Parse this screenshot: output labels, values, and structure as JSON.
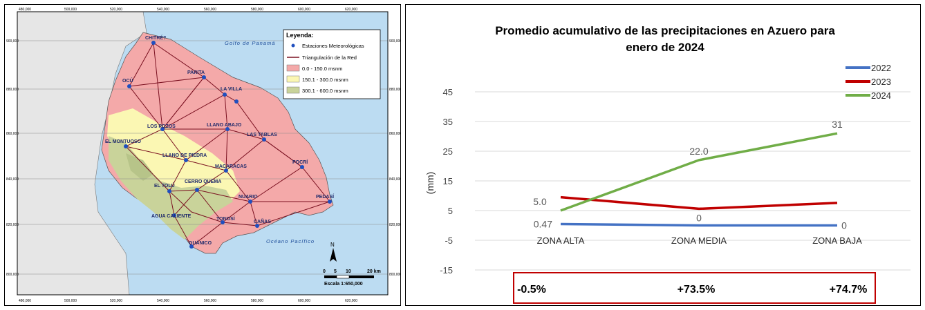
{
  "map": {
    "x_ticks": [
      "480,000",
      "500,000",
      "520,000",
      "540,000",
      "560,000",
      "580,000",
      "600,000",
      "620,000"
    ],
    "y_ticks": [
      "900,000",
      "880,000",
      "860,000",
      "840,000",
      "820,000",
      "800,000"
    ],
    "legend": {
      "title": "Leyenda:",
      "items": [
        {
          "label": "Estaciones Meteorológicas",
          "color": "#1f4fbf"
        },
        {
          "label": "Triangulación de la Red",
          "color": "#7a1020"
        },
        {
          "label": "0.0 - 150.0 msnm",
          "color": "#f4a9a9"
        },
        {
          "label": "150.1 - 300.0 msnm",
          "color": "#fbf7b3"
        },
        {
          "label": "300.1 - 600.0 msnm",
          "color": "#c9d39a"
        }
      ]
    },
    "seas": {
      "north": "Golfo de Panamá",
      "south": "Océano Pacífico"
    },
    "towns": [
      "CHITRÉ? ",
      "OCÚ",
      "PARITA",
      "LA VILLA",
      "LOS POZOS",
      "LLANO ABAJO",
      "LAS TABLAS",
      "EL MONTUOSO",
      "LLANO DE PIEDRA",
      "MACARACAS",
      "POCRÍ",
      "EL TOLÚ",
      "CERRO QUEMA",
      "NUARIO",
      "PEDASÍ",
      "AGUA CALIENTE",
      "TONOSÍ",
      "CAÑAS",
      "GUÁNICO"
    ],
    "scale": {
      "ticks": [
        "0",
        "5",
        "10",
        "20 km"
      ],
      "text": "Escala 1:650,000"
    },
    "north_label": "N"
  },
  "chart_data": {
    "type": "line",
    "title": "Promedio acumulativo de las precipitaciones en Azuero para enero de 2024",
    "ylabel": "(mm)",
    "xlabel": "",
    "categories": [
      "ZONA ALTA",
      "ZONA MEDIA",
      "ZONA BAJA"
    ],
    "ylim": [
      -15,
      45
    ],
    "yticks": [
      -15,
      -5,
      5,
      15,
      25,
      35,
      45
    ],
    "grid": true,
    "legend_position": "top-right",
    "series": [
      {
        "name": "2022",
        "values": [
          0.47,
          0,
          0
        ],
        "color": "#4472c4",
        "labels": [
          "0.47",
          "0",
          "0"
        ]
      },
      {
        "name": "2023",
        "values": [
          9.5,
          5.6,
          7.6
        ],
        "color": "#c00000",
        "labels": [
          "",
          "",
          ""
        ]
      },
      {
        "name": "2024",
        "values": [
          5.0,
          22.0,
          31.0
        ],
        "color": "#70ad47",
        "labels": [
          "5.0",
          "22.0",
          "31"
        ]
      }
    ],
    "changes": [
      "-0.5%",
      "+73.5%",
      "+74.7%"
    ]
  }
}
